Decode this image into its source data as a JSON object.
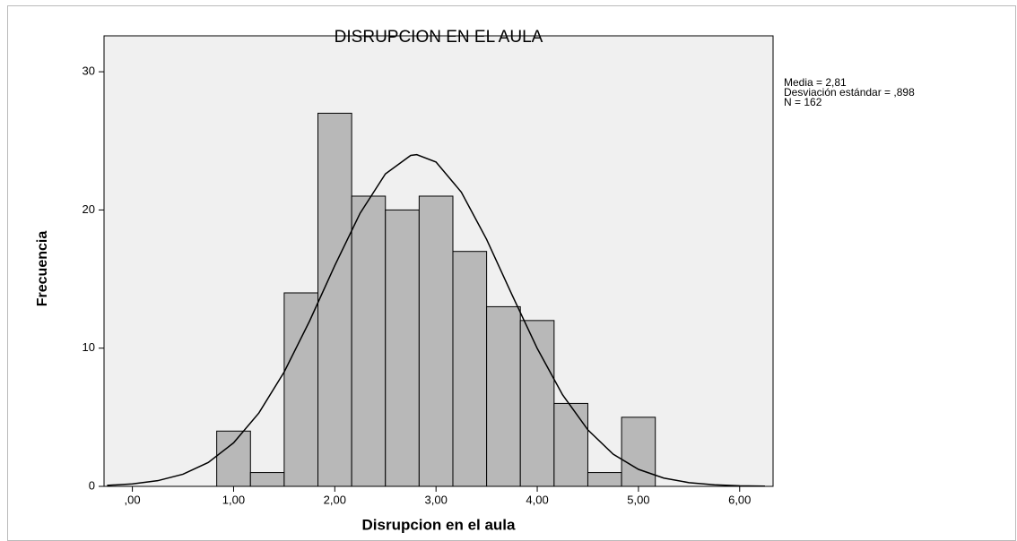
{
  "chart_data": {
    "type": "histogram",
    "title": "DISRUPCION EN EL AULA",
    "x_label": "Disrupcion en el aula",
    "y_label": "Frecuencia",
    "annotations": [
      "Media = 2,81",
      "Desviación estándar = ,898",
      "N = 162"
    ],
    "bins": [
      0.8333,
      1.1667,
      1.5,
      1.8333,
      2.1667,
      2.5,
      2.8333,
      3.1667,
      3.5,
      3.8333,
      4.1667,
      4.5,
      4.8333,
      5.1667
    ],
    "counts": [
      4,
      1,
      14,
      27,
      21,
      20,
      21,
      17,
      13,
      12,
      6,
      1,
      5
    ],
    "color": "#b8b8b8",
    "curve": {
      "color": "#000000",
      "x": [
        -0.25,
        0,
        0.25,
        0.5,
        0.75,
        1.0,
        1.25,
        1.5,
        1.75,
        2.0,
        2.25,
        2.5,
        2.75,
        2.81,
        3.0,
        3.25,
        3.5,
        3.75,
        4.0,
        4.25,
        4.5,
        4.75,
        5.0,
        5.25,
        5.5,
        5.75,
        6.0,
        6.25
      ],
      "values": [
        0.07,
        0.18,
        0.41,
        0.88,
        1.73,
        3.15,
        5.31,
        8.28,
        11.95,
        15.98,
        19.76,
        22.61,
        23.95,
        24.0,
        23.47,
        21.29,
        17.87,
        13.87,
        9.98,
        6.63,
        4.09,
        2.33,
        1.23,
        0.6,
        0.27,
        0.11,
        0.04,
        0.02
      ]
    },
    "xlim": [
      -0.28,
      6.33
    ],
    "ylim": [
      0,
      32.6
    ],
    "xticks": [
      {
        "value": 0,
        "label": ",00"
      },
      {
        "value": 1,
        "label": "1,00"
      },
      {
        "value": 2,
        "label": "2,00"
      },
      {
        "value": 3,
        "label": "3,00"
      },
      {
        "value": 4,
        "label": "4,00"
      },
      {
        "value": 5,
        "label": "5,00"
      },
      {
        "value": 6,
        "label": "6,00"
      }
    ],
    "yticks": [
      0,
      10,
      20,
      30
    ],
    "grid": false
  }
}
